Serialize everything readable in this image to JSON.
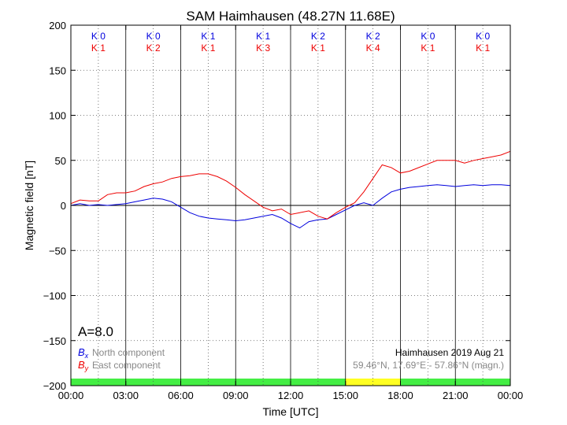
{
  "chart_data": {
    "type": "line",
    "title": "SAM Haimhausen (48.27N 11.68E)",
    "xlabel": "Time [UTC]",
    "ylabel": "Magnetic field [nT]",
    "xlim": [
      0,
      24
    ],
    "ylim": [
      -200,
      200
    ],
    "x_ticks": [
      0,
      3,
      6,
      9,
      12,
      15,
      18,
      21,
      24
    ],
    "x_tick_labels": [
      "00:00",
      "03:00",
      "06:00",
      "09:00",
      "12:00",
      "15:00",
      "18:00",
      "21:00",
      "00:00"
    ],
    "y_ticks": [
      200,
      150,
      100,
      50,
      0,
      -50,
      -100,
      -150,
      -200
    ],
    "y_tick_labels": [
      "200",
      "150",
      "100",
      "50",
      "0",
      "−50",
      "−100",
      "−150",
      "−200"
    ],
    "grid": true,
    "k_index_row1": [
      "K 0",
      "K 0",
      "K 1",
      "K 1",
      "K 2",
      "K 2",
      "K 0",
      "K 0"
    ],
    "k_index_row2": [
      "K 1",
      "K 2",
      "K 1",
      "K 3",
      "K 1",
      "K 4",
      "K 1",
      "K 1"
    ],
    "activity_bar": [
      {
        "from": 0,
        "to": 15,
        "color": "#44ee44"
      },
      {
        "from": 15,
        "to": 18,
        "color": "#ffff22"
      },
      {
        "from": 18,
        "to": 24,
        "color": "#44ee44"
      }
    ],
    "annotations": {
      "a_index": "A=8.0",
      "station_date": "Haimhausen 2019 Aug 21",
      "coords": "59.46°N, 17.69°E - 57.86°N (magn.)"
    },
    "series": [
      {
        "name": "North component",
        "symbol": "B",
        "subscript": "x",
        "color": "#0000dd",
        "x": [
          0,
          0.5,
          1,
          1.5,
          2,
          2.5,
          3,
          3.5,
          4,
          4.5,
          5,
          5.5,
          6,
          6.5,
          7,
          7.5,
          8,
          8.5,
          9,
          9.5,
          10,
          10.5,
          11,
          11.5,
          12,
          12.5,
          13,
          13.5,
          14,
          14.5,
          15,
          15.5,
          16,
          16.5,
          17,
          17.5,
          18,
          18.5,
          19,
          19.5,
          20,
          20.5,
          21,
          21.5,
          22,
          22.5,
          23,
          23.5,
          24
        ],
        "values": [
          0,
          2,
          0,
          1,
          0,
          1,
          2,
          4,
          6,
          8,
          7,
          4,
          -2,
          -8,
          -12,
          -14,
          -15,
          -16,
          -17,
          -16,
          -14,
          -12,
          -10,
          -14,
          -20,
          -25,
          -18,
          -16,
          -15,
          -10,
          -5,
          0,
          3,
          0,
          8,
          15,
          18,
          20,
          21,
          22,
          23,
          22,
          21,
          22,
          23,
          22,
          23,
          23,
          22
        ]
      },
      {
        "name": "East component",
        "symbol": "B",
        "subscript": "y",
        "color": "#ee0000",
        "x": [
          0,
          0.5,
          1,
          1.5,
          2,
          2.5,
          3,
          3.5,
          4,
          4.5,
          5,
          5.5,
          6,
          6.5,
          7,
          7.5,
          8,
          8.5,
          9,
          9.5,
          10,
          10.5,
          11,
          11.5,
          12,
          12.5,
          13,
          13.5,
          14,
          14.5,
          15,
          15.5,
          16,
          16.5,
          17,
          17.5,
          18,
          18.5,
          19,
          19.5,
          20,
          20.5,
          21,
          21.5,
          22,
          22.5,
          23,
          23.5,
          24
        ],
        "values": [
          2,
          6,
          5,
          5,
          12,
          14,
          14,
          16,
          21,
          24,
          26,
          30,
          32,
          33,
          35,
          35,
          32,
          27,
          20,
          12,
          5,
          -2,
          -6,
          -4,
          -10,
          -8,
          -6,
          -12,
          -15,
          -8,
          -2,
          3,
          15,
          30,
          45,
          42,
          36,
          38,
          42,
          46,
          50,
          50,
          50,
          47,
          50,
          52,
          54,
          56,
          60
        ]
      }
    ]
  }
}
